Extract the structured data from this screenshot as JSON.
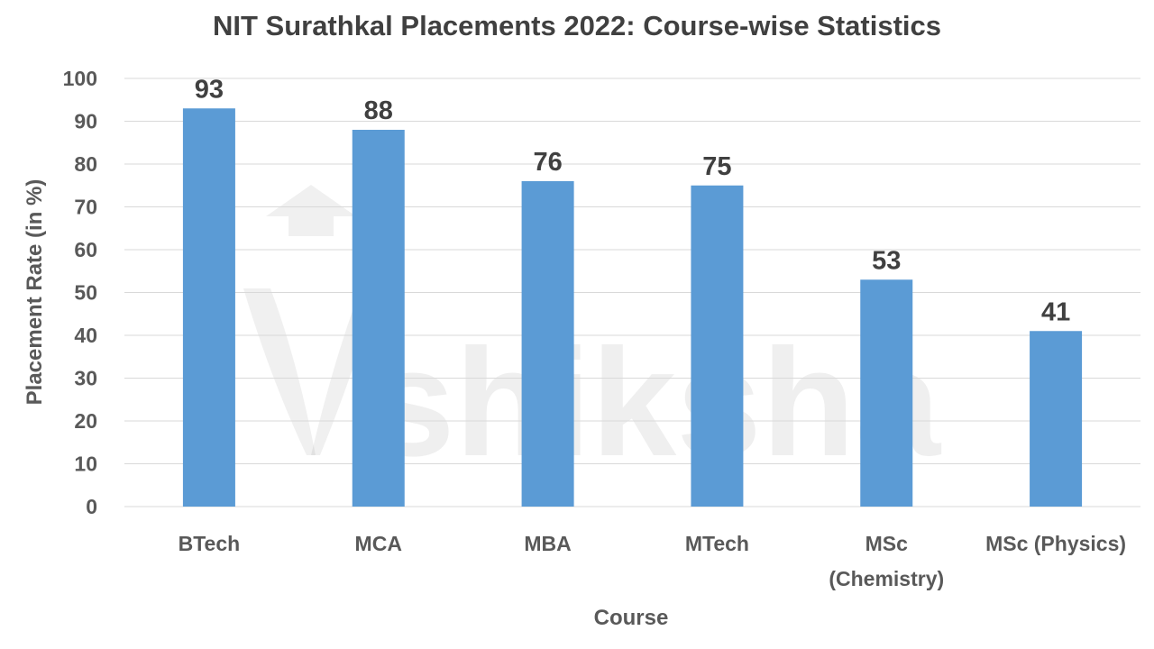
{
  "chart_data": {
    "type": "bar",
    "title": "NIT Surathkal Placements 2022: Course-wise Statistics",
    "xlabel": "Course",
    "ylabel": "Placement Rate (in %)",
    "categories": [
      [
        "BTech"
      ],
      [
        "MCA"
      ],
      [
        "MBA"
      ],
      [
        "MTech"
      ],
      [
        "MSc",
        "(Chemistry)"
      ],
      [
        "MSc (Physics)"
      ]
    ],
    "values": [
      93,
      88,
      76,
      75,
      53,
      41
    ],
    "ylim": [
      0,
      100
    ],
    "yticks": [
      0,
      10,
      20,
      30,
      40,
      50,
      60,
      70,
      80,
      90,
      100
    ],
    "grid": true,
    "legend": "none",
    "bar_color": "#5B9BD5",
    "watermark": "shiksha"
  }
}
